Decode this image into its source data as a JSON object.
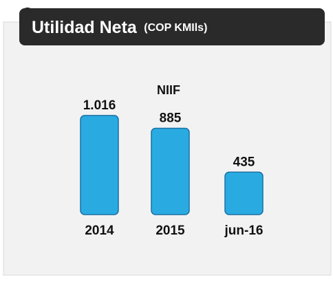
{
  "chart_data": {
    "type": "bar",
    "title": "Utilidad Neta",
    "title_unit": "(COP KMIls)",
    "subtitle": "NIIF",
    "categories": [
      "2014",
      "2015",
      "jun-16"
    ],
    "values": [
      1016,
      885,
      435
    ],
    "value_labels": [
      "1.016",
      "885",
      "435"
    ],
    "color": "#29abe2",
    "ylim": [
      0,
      1100
    ]
  }
}
